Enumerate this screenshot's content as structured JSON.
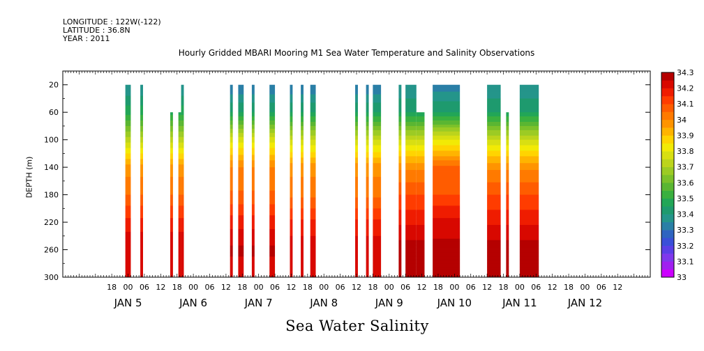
{
  "header": {
    "longitude": "LONGITUDE : 122W(-122)",
    "latitude": "LATITUDE : 36.8N",
    "year": "YEAR : 2011"
  },
  "chart_data": {
    "type": "heatmap",
    "title": "Hourly Gridded MBARI Mooring M1 Sea Water Temperature and Salinity Observations",
    "xlabel": "Sea Water Salinity",
    "ylabel": "DEPTH (m)",
    "x_unit": "hours since Jan 5 00:00 (2011)",
    "xlim": [
      -24,
      192
    ],
    "ylim": [
      300,
      0
    ],
    "y_ticks": [
      20,
      60,
      100,
      140,
      180,
      220,
      260,
      300
    ],
    "x_hour_ticks": [
      {
        "h": -6,
        "label": "18"
      },
      {
        "h": 0,
        "label": "00"
      },
      {
        "h": 6,
        "label": "06"
      },
      {
        "h": 12,
        "label": "12"
      },
      {
        "h": 18,
        "label": "18"
      },
      {
        "h": 24,
        "label": "00"
      },
      {
        "h": 30,
        "label": "06"
      },
      {
        "h": 36,
        "label": "12"
      },
      {
        "h": 42,
        "label": "18"
      },
      {
        "h": 48,
        "label": "00"
      },
      {
        "h": 54,
        "label": "06"
      },
      {
        "h": 60,
        "label": "12"
      },
      {
        "h": 66,
        "label": "18"
      },
      {
        "h": 72,
        "label": "00"
      },
      {
        "h": 78,
        "label": "06"
      },
      {
        "h": 84,
        "label": "12"
      },
      {
        "h": 90,
        "label": "18"
      },
      {
        "h": 96,
        "label": "00"
      },
      {
        "h": 102,
        "label": "06"
      },
      {
        "h": 108,
        "label": "12"
      },
      {
        "h": 114,
        "label": "18"
      },
      {
        "h": 120,
        "label": "00"
      },
      {
        "h": 126,
        "label": "06"
      },
      {
        "h": 132,
        "label": "12"
      },
      {
        "h": 138,
        "label": "18"
      },
      {
        "h": 144,
        "label": "00"
      },
      {
        "h": 150,
        "label": "06"
      },
      {
        "h": 156,
        "label": "12"
      },
      {
        "h": 162,
        "label": "18"
      },
      {
        "h": 168,
        "label": "00"
      },
      {
        "h": 174,
        "label": "06"
      },
      {
        "h": 180,
        "label": "12"
      }
    ],
    "x_day_labels": [
      {
        "h": 0,
        "text": "JAN  5"
      },
      {
        "h": 24,
        "text": "JAN  6"
      },
      {
        "h": 48,
        "text": "JAN  7"
      },
      {
        "h": 72,
        "text": "JAN  8"
      },
      {
        "h": 96,
        "text": "JAN  9"
      },
      {
        "h": 120,
        "text": "JAN 10"
      },
      {
        "h": 144,
        "text": "JAN 11"
      },
      {
        "h": 168,
        "text": "JAN 12"
      }
    ],
    "colorbar": {
      "labels": [
        "33",
        "33.1",
        "33.2",
        "33.3",
        "33.4",
        "33.5",
        "33.6",
        "33.7",
        "33.8",
        "33.9",
        "34",
        "34.1",
        "34.2",
        "34.3"
      ],
      "levels": [
        33.0,
        33.05,
        33.1,
        33.15,
        33.2,
        33.25,
        33.3,
        33.35,
        33.4,
        33.45,
        33.5,
        33.55,
        33.6,
        33.65,
        33.7,
        33.75,
        33.8,
        33.85,
        33.9,
        33.95,
        34.0,
        34.05,
        34.1,
        34.15,
        34.2,
        34.25,
        34.3
      ],
      "colors": [
        "#cc00ff",
        "#a020f0",
        "#7f38ec",
        "#5a3fe6",
        "#3a4fd8",
        "#2f64c0",
        "#2a7fa6",
        "#24958a",
        "#1e9a6e",
        "#22a657",
        "#3ab03f",
        "#5ab632",
        "#7cc12a",
        "#9ccb24",
        "#bcd41c",
        "#d8df12",
        "#f2ea05",
        "#ffd400",
        "#ffb400",
        "#ff9400",
        "#ff7a00",
        "#ff5c00",
        "#ff3c00",
        "#ef1c00",
        "#d80800",
        "#b50000"
      ]
    },
    "profiles": [
      {
        "name": "A",
        "depths": [
          20,
          60,
          100,
          140,
          180,
          220,
          260,
          300
        ],
        "salinity": [
          33.35,
          33.48,
          33.72,
          33.97,
          34.05,
          34.17,
          34.25,
          34.2
        ]
      },
      {
        "name": "B",
        "depths": [
          20,
          60,
          100,
          140,
          180,
          220,
          260,
          300
        ],
        "salinity": [
          33.3,
          33.45,
          33.78,
          34.0,
          34.06,
          34.18,
          34.26,
          34.22
        ]
      },
      {
        "name": "C",
        "depths": [
          20,
          60,
          100,
          140,
          180,
          220,
          260,
          300
        ],
        "salinity": [
          33.3,
          33.45,
          33.75,
          33.98,
          34.04,
          34.16,
          34.24,
          34.2
        ]
      },
      {
        "name": "D",
        "depths": [
          20,
          60,
          100,
          140,
          180,
          220,
          260,
          300
        ],
        "salinity": [
          33.35,
          33.45,
          33.75,
          33.99,
          34.1,
          34.19,
          34.28,
          34.25
        ]
      },
      {
        "name": "E",
        "depths": [
          20,
          60,
          100,
          140,
          180,
          220,
          260,
          300
        ],
        "salinity": [
          33.32,
          33.45,
          33.8,
          34.06,
          34.1,
          34.22,
          34.27,
          34.25
        ]
      }
    ],
    "segments": [
      {
        "start": -1,
        "end": 1,
        "top": 20,
        "profile": "A"
      },
      {
        "start": 4.5,
        "end": 5.5,
        "top": 20,
        "profile": "A"
      },
      {
        "start": 15.5,
        "end": 16.5,
        "top": 60,
        "profile": "A"
      },
      {
        "start": 18.5,
        "end": 19.5,
        "top": 60,
        "profile": "A"
      },
      {
        "start": 19.5,
        "end": 20.5,
        "top": 20,
        "profile": "A"
      },
      {
        "start": 37.5,
        "end": 38.5,
        "top": 20,
        "profile": "B"
      },
      {
        "start": 40.5,
        "end": 42.5,
        "top": 20,
        "profile": "B"
      },
      {
        "start": 45.5,
        "end": 46.5,
        "top": 20,
        "profile": "B"
      },
      {
        "start": 52,
        "end": 54,
        "top": 20,
        "profile": "B"
      },
      {
        "start": 59.5,
        "end": 60.5,
        "top": 20,
        "profile": "C"
      },
      {
        "start": 63.5,
        "end": 64.5,
        "top": 20,
        "profile": "C"
      },
      {
        "start": 67,
        "end": 69,
        "top": 20,
        "profile": "C"
      },
      {
        "start": 83.5,
        "end": 84.5,
        "top": 20,
        "profile": "C"
      },
      {
        "start": 87.5,
        "end": 88.5,
        "top": 20,
        "profile": "C"
      },
      {
        "start": 90,
        "end": 93,
        "top": 20,
        "profile": "C"
      },
      {
        "start": 99.5,
        "end": 100.5,
        "top": 20,
        "profile": "D"
      },
      {
        "start": 102,
        "end": 106,
        "top": 20,
        "profile": "D"
      },
      {
        "start": 106,
        "end": 109,
        "top": 60,
        "profile": "D"
      },
      {
        "start": 112,
        "end": 122,
        "top": 20,
        "profile": "E"
      },
      {
        "start": 132,
        "end": 137,
        "top": 20,
        "profile": "D"
      },
      {
        "start": 139,
        "end": 140,
        "top": 60,
        "profile": "D"
      },
      {
        "start": 144,
        "end": 151,
        "top": 20,
        "profile": "D"
      }
    ]
  }
}
